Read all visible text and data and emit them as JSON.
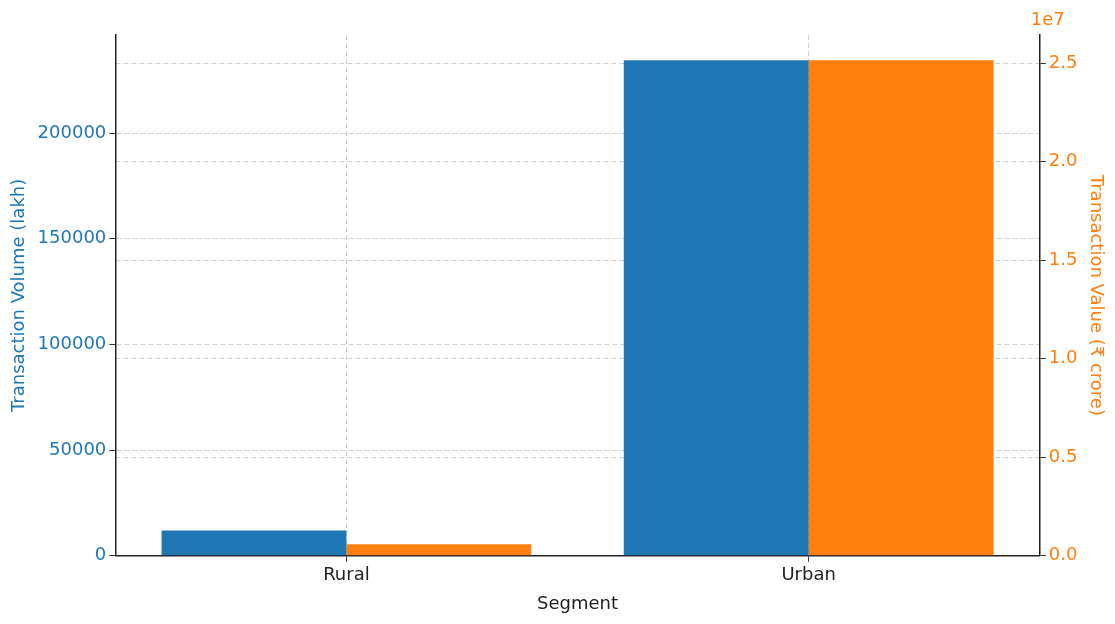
{
  "chart_data": {
    "type": "bar",
    "categories": [
      "Rural",
      "Urban"
    ],
    "xlabel": "Segment",
    "ylabel": "Transaction Volume (lakh)",
    "y2label": "Transaction Value (₹ crore)",
    "series": [
      {
        "color": "#1f77b4",
        "values": [
          12000,
          234500
        ]
      },
      {
        "color": "#ff7f0e",
        "values": [
          0.059,
          2.515
        ],
        "axis": "y2"
      }
    ],
    "ylim": [
      0,
      246400
    ],
    "yticks": [
      0,
      50000,
      100000,
      150000,
      200000
    ],
    "y2lim": [
      0,
      2.643
    ],
    "y2ticks": [
      {
        "value": 0,
        "label": "0.0"
      },
      {
        "value": 0.5,
        "label": "0.5"
      },
      {
        "value": 1,
        "label": "1.0"
      },
      {
        "value": 1.5,
        "label": "1.5"
      },
      {
        "value": 2,
        "label": "2.0"
      },
      {
        "value": 2.5,
        "label": "2.5"
      }
    ],
    "annotations": [
      "1e7"
    ],
    "grid": true,
    "legend": false
  }
}
